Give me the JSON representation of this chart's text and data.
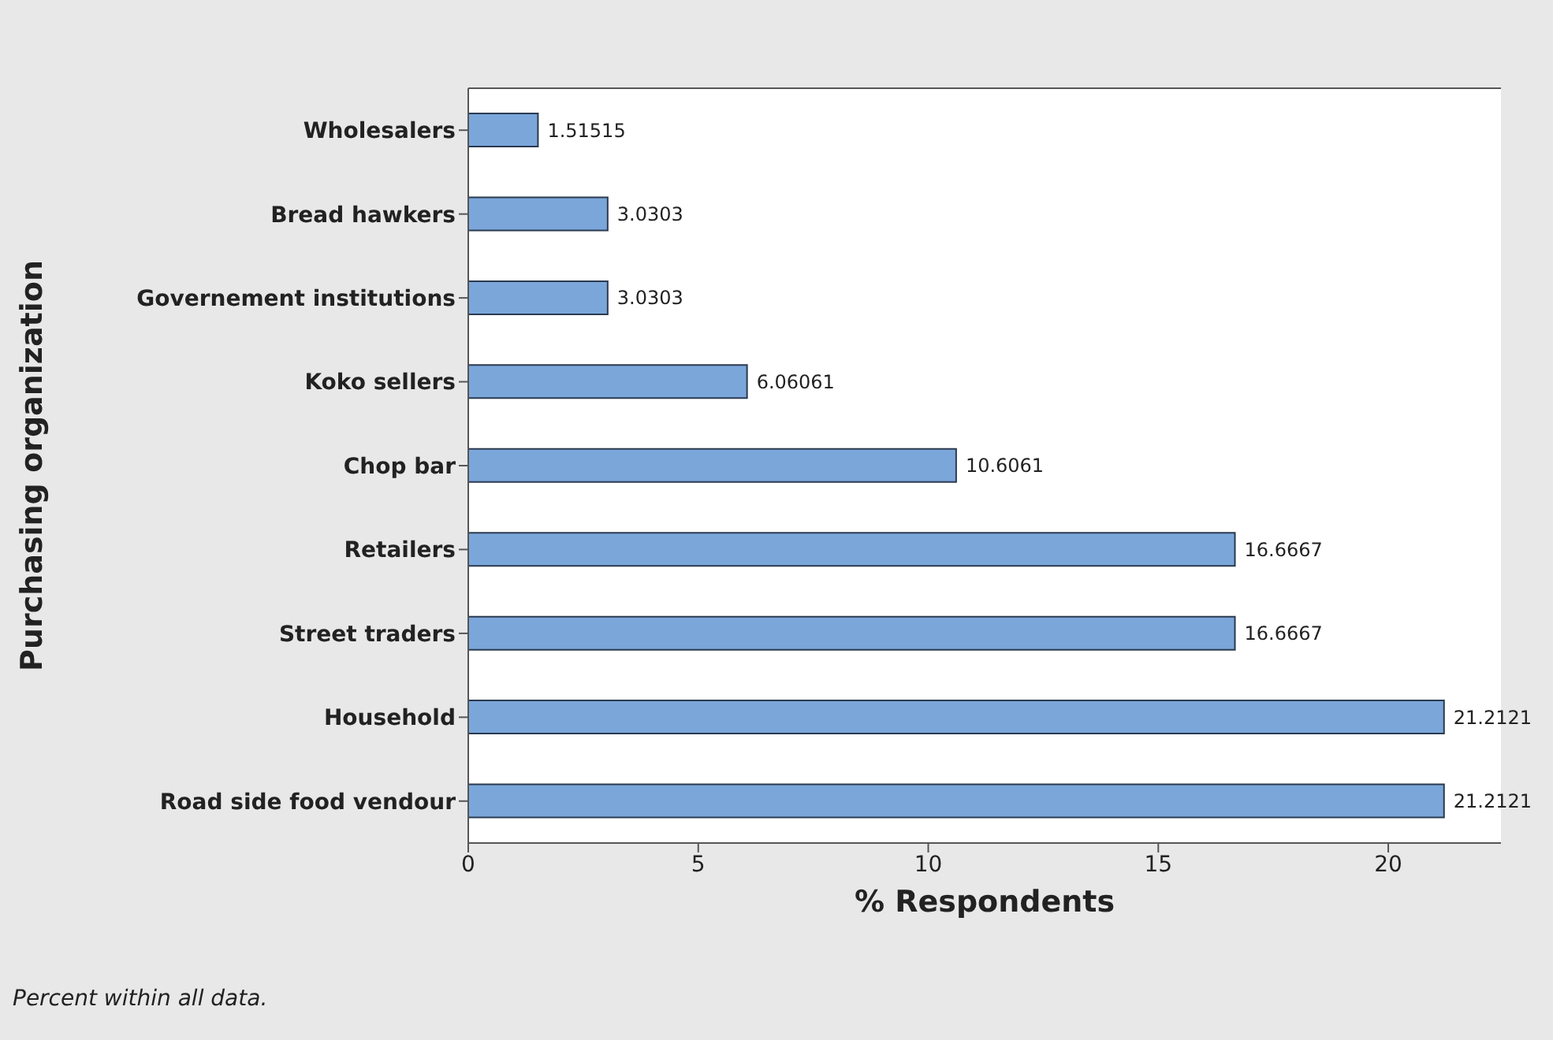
{
  "chart_data": {
    "type": "bar",
    "orientation": "horizontal",
    "xlabel": "% Respondents",
    "ylabel": "Purchasing organization",
    "categories": [
      "Wholesalers",
      "Bread hawkers",
      "Governement institutions",
      "Koko sellers",
      "Chop bar",
      "Retailers",
      "Street traders",
      "Household",
      "Road side food vendour"
    ],
    "values": [
      1.51515,
      3.0303,
      3.0303,
      6.06061,
      10.6061,
      16.6667,
      16.6667,
      21.2121,
      21.2121
    ],
    "color": "#7ba6da",
    "xlim": [
      0,
      22.45
    ],
    "xticks": [
      0,
      5,
      10,
      15,
      20
    ],
    "data_labels": true,
    "grid": false,
    "annotations": [
      "Percent within all data."
    ]
  }
}
